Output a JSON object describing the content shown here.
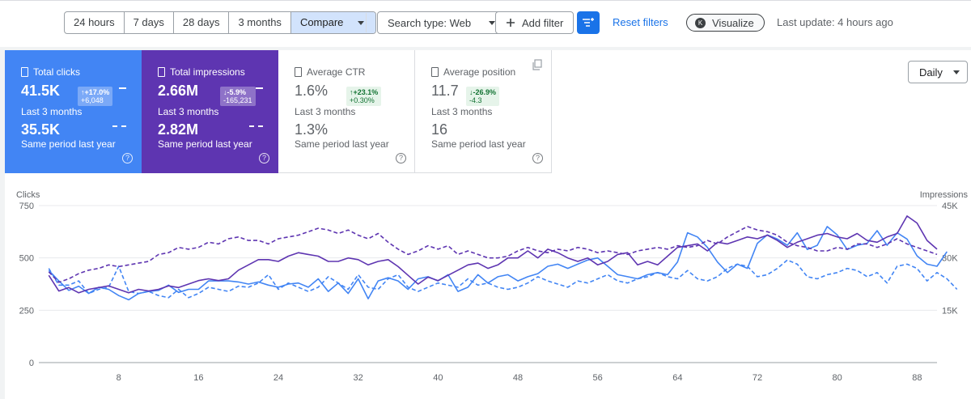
{
  "toolbar": {
    "date_ranges": [
      "24 hours",
      "7 days",
      "28 days",
      "3 months"
    ],
    "compare_label": "Compare",
    "search_type_label": "Search type: Web",
    "add_filter_label": "Add filter",
    "reset_filters_label": "Reset filters",
    "visualize_label": "Visualize",
    "visualize_avatar": "K",
    "last_update": "Last update: 4 hours ago"
  },
  "cards": [
    {
      "title": "Total clicks",
      "value": "41.5K",
      "label": "Last 3 months",
      "change": "↑+17.0%",
      "change_abs": "+6,048",
      "compare_value": "35.5K",
      "compare_label": "Same period last year"
    },
    {
      "title": "Total impressions",
      "value": "2.66M",
      "label": "Last 3 months",
      "change": "↓-5.9%",
      "change_abs": "-165,231",
      "compare_value": "2.82M",
      "compare_label": "Same period last year"
    },
    {
      "title": "Average CTR",
      "value": "1.6%",
      "label": "Last 3 months",
      "change": "↑+23.1%",
      "change_abs": "+0.30%",
      "compare_value": "1.3%",
      "compare_label": "Same period last year"
    },
    {
      "title": "Average position",
      "value": "11.7",
      "label": "Last 3 months",
      "change": "↓-26.9%",
      "change_abs": "-4.3",
      "compare_value": "16",
      "compare_label": "Same period last year"
    }
  ],
  "granularity": "Daily",
  "colors": {
    "clicks": "#4285f4",
    "impressions": "#5e35b1",
    "primary": "#1a73e8"
  },
  "chart_data": {
    "type": "line",
    "left_axis": {
      "title": "Clicks",
      "ticks": [
        "0",
        "250",
        "500",
        "750"
      ],
      "range": [
        0,
        750
      ]
    },
    "right_axis": {
      "title": "Impressions",
      "ticks": [
        "15K",
        "30K",
        "45K"
      ],
      "range": [
        0,
        45000
      ]
    },
    "x_ticks": [
      "8",
      "16",
      "24",
      "32",
      "40",
      "48",
      "56",
      "64",
      "72",
      "80",
      "88"
    ],
    "x_range": [
      0,
      90
    ],
    "series": [
      {
        "axis": "left",
        "style": "solid",
        "color": "#4285f4",
        "values": [
          440,
          390,
          345,
          365,
          330,
          360,
          350,
          320,
          300,
          330,
          340,
          345,
          370,
          335,
          350,
          350,
          390,
          390,
          390,
          385,
          375,
          385,
          370,
          360,
          375,
          380,
          360,
          400,
          340,
          380,
          330,
          400,
          305,
          390,
          405,
          390,
          350,
          400,
          410,
          390,
          420,
          340,
          360,
          420,
          380,
          410,
          420,
          390,
          410,
          425,
          460,
          470,
          450,
          470,
          490,
          500,
          460,
          420,
          410,
          400,
          420,
          430,
          420,
          480,
          620,
          600,
          550,
          480,
          430,
          470,
          450,
          570,
          610,
          590,
          560,
          620,
          540,
          560,
          650,
          610,
          540,
          560,
          570,
          630,
          560,
          620,
          590,
          510,
          470,
          460,
          530
        ]
      },
      {
        "axis": "left",
        "style": "dashed",
        "color": "#4285f4",
        "values": [
          450,
          370,
          370,
          390,
          330,
          350,
          360,
          460,
          340,
          330,
          340,
          320,
          310,
          350,
          310,
          330,
          360,
          350,
          340,
          365,
          360,
          380,
          420,
          350,
          380,
          360,
          340,
          360,
          410,
          380,
          350,
          420,
          360,
          350,
          400,
          420,
          360,
          340,
          360,
          380,
          370,
          360,
          400,
          370,
          380,
          360,
          350,
          360,
          380,
          410,
          390,
          375,
          360,
          390,
          380,
          400,
          420,
          390,
          380,
          400,
          410,
          430,
          410,
          400,
          440,
          400,
          390,
          410,
          450,
          470,
          460,
          410,
          420,
          450,
          490,
          470,
          410,
          400,
          420,
          430,
          450,
          440,
          410,
          430,
          380,
          460,
          470,
          450,
          390,
          430,
          400,
          350
        ]
      },
      {
        "axis": "right",
        "style": "solid",
        "color": "#5e35b1",
        "values": [
          25000,
          20500,
          21500,
          20000,
          21000,
          21500,
          22000,
          21000,
          20000,
          21000,
          20500,
          21000,
          22000,
          21500,
          22500,
          23500,
          24000,
          23500,
          24000,
          26500,
          28000,
          29500,
          29500,
          29000,
          30500,
          31500,
          31000,
          30500,
          29000,
          29000,
          30000,
          29500,
          28000,
          29000,
          29500,
          27500,
          25000,
          22500,
          24500,
          23500,
          25000,
          26500,
          28000,
          28500,
          27000,
          28000,
          30000,
          30000,
          32000,
          30000,
          32500,
          31500,
          30000,
          29000,
          30000,
          28000,
          29000,
          31000,
          31500,
          28000,
          29000,
          28000,
          30500,
          33000,
          33500,
          34000,
          32000,
          34500,
          34000,
          35000,
          36000,
          35500,
          36500,
          35000,
          33000,
          34500,
          35500,
          36500,
          37000,
          36000,
          35500,
          37000,
          35000,
          34500,
          36000,
          37000,
          42000,
          40000,
          35000,
          32500
        ]
      },
      {
        "axis": "right",
        "style": "dashed",
        "color": "#5e35b1",
        "values": [
          26000,
          23000,
          24000,
          25500,
          26500,
          27000,
          28000,
          27500,
          28000,
          28500,
          29000,
          31000,
          31500,
          33000,
          32500,
          33000,
          34500,
          34000,
          35500,
          36000,
          35000,
          35000,
          34000,
          35500,
          36000,
          36500,
          37500,
          38500,
          38000,
          37000,
          38000,
          36500,
          35500,
          37000,
          34500,
          32500,
          31000,
          32000,
          33500,
          32500,
          33500,
          31000,
          32000,
          31000,
          30000,
          30000,
          30500,
          32000,
          33000,
          32000,
          31500,
          32500,
          32000,
          33000,
          32500,
          31500,
          32000,
          31500,
          31000,
          32000,
          32500,
          33000,
          32500,
          33500,
          33000,
          33500,
          35000,
          34000,
          36000,
          37500,
          39000,
          38000,
          37500,
          36500,
          34500,
          33500,
          33000,
          32000,
          32000,
          33000,
          32500,
          34000,
          34000,
          33000,
          34000,
          35500,
          34000,
          33000,
          32000,
          31000
        ]
      }
    ]
  }
}
